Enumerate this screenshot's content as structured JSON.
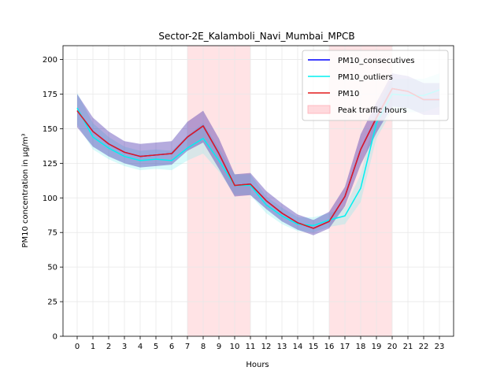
{
  "chart_data": {
    "type": "line",
    "title": "Sector-2E_Kalamboli_Navi_Mumbai_MPCB",
    "xlabel": "Hours",
    "ylabel": "PM10 concentration in µg/m³",
    "x": [
      0,
      1,
      2,
      3,
      4,
      5,
      6,
      7,
      8,
      9,
      10,
      11,
      12,
      13,
      14,
      15,
      16,
      17,
      18,
      19,
      20,
      21,
      22,
      23
    ],
    "xlim": [
      -0.9,
      23.9
    ],
    "ylim": [
      0,
      210
    ],
    "yticks": [
      0,
      25,
      50,
      75,
      100,
      125,
      150,
      175,
      200
    ],
    "xticks": [
      "0",
      "1",
      "2",
      "3",
      "4",
      "5",
      "6",
      "7",
      "8",
      "9",
      "10",
      "11",
      "12",
      "13",
      "14",
      "15",
      "16",
      "17",
      "18",
      "19",
      "20",
      "21",
      "22",
      "23"
    ],
    "grid": true,
    "legend_position": "top-right",
    "shaded_regions": [
      {
        "name": "Peak traffic hours",
        "x_start": 7,
        "x_end": 11,
        "color": "#ffc0c6"
      },
      {
        "x_start": 16,
        "x_end": 20,
        "color": "#ffc0c6"
      }
    ],
    "series": [
      {
        "name": "PM10_consecutives",
        "color": "#0000ff",
        "values": [
          163,
          148,
          139,
          133,
          130,
          131,
          132,
          144,
          152,
          132,
          109,
          110,
          98,
          89,
          82,
          78,
          83,
          101,
          135,
          158,
          179,
          177,
          171,
          171
        ],
        "band_low": [
          151,
          137,
          130,
          125,
          122,
          123,
          124,
          134,
          140,
          121,
          101,
          102,
          92,
          83,
          77,
          73,
          78,
          94,
          124,
          147,
          166,
          165,
          160,
          160
        ],
        "band_high": [
          175,
          158,
          148,
          141,
          139,
          140,
          141,
          155,
          163,
          143,
          117,
          118,
          105,
          96,
          88,
          84,
          90,
          108,
          146,
          169,
          190,
          188,
          183,
          183
        ],
        "band_color": "#2a0fa0"
      },
      {
        "name": "PM10_outliers",
        "color": "#00f0f0",
        "values": [
          165,
          144,
          136,
          130,
          127,
          128,
          127,
          136,
          143,
          127,
          109,
          109,
          95,
          87,
          81,
          80,
          84,
          87,
          107,
          154,
          175,
          174,
          174,
          178
        ],
        "band_low": [
          153,
          135,
          128,
          123,
          120,
          121,
          120,
          127,
          132,
          119,
          102,
          102,
          89,
          81,
          76,
          75,
          79,
          81,
          97,
          143,
          163,
          162,
          162,
          166
        ],
        "band_high": [
          176,
          154,
          144,
          137,
          134,
          135,
          134,
          145,
          154,
          136,
          117,
          117,
          101,
          93,
          86,
          86,
          89,
          93,
          117,
          164,
          186,
          186,
          186,
          190
        ],
        "band_color": "#7ff0f0"
      },
      {
        "name": "PM10",
        "color": "#e41a1c",
        "values": [
          163,
          148,
          139,
          133,
          130,
          131,
          132,
          144,
          152,
          132,
          109,
          110,
          98,
          89,
          82,
          78,
          83,
          101,
          135,
          158,
          179,
          177,
          171,
          171
        ],
        "band_low": [
          151,
          137,
          130,
          125,
          122,
          123,
          124,
          134,
          140,
          121,
          101,
          102,
          92,
          83,
          77,
          73,
          78,
          94,
          124,
          147,
          166,
          165,
          160,
          160
        ],
        "band_high": [
          175,
          158,
          148,
          141,
          139,
          140,
          141,
          155,
          163,
          143,
          117,
          118,
          105,
          96,
          88,
          84,
          90,
          108,
          146,
          169,
          190,
          188,
          183,
          183
        ],
        "band_color": "#c2185b"
      }
    ]
  }
}
